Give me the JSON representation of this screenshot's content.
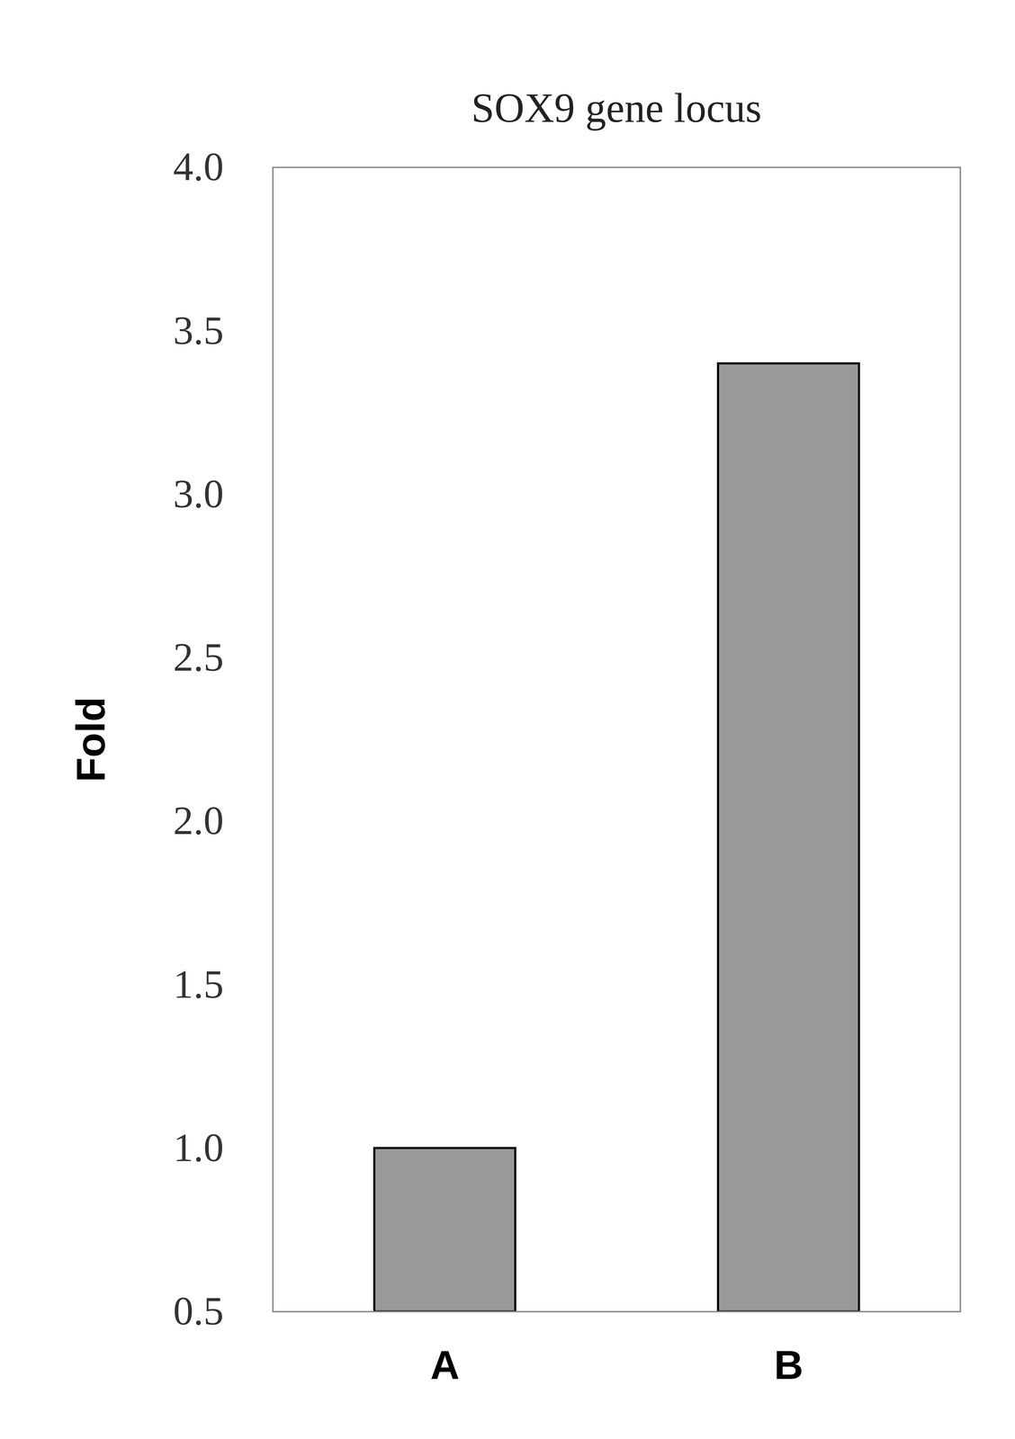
{
  "chart_data": {
    "type": "bar",
    "title": "SOX9 gene locus",
    "y_label": "Fold",
    "categories": [
      "A",
      "B"
    ],
    "values": [
      1.0,
      3.4
    ],
    "color": "#999999",
    "ylim": [
      0.5,
      4.0
    ],
    "yticks": [
      0.5,
      {
        "value": 1.0,
        "label": "1.0"
      },
      1.5,
      {
        "value": 2.0,
        "label": "2.0"
      },
      2.5,
      {
        "value": 3.0,
        "label": "3.0"
      },
      3.5,
      {
        "value": 4.0,
        "label": "4.0"
      }
    ],
    "grid": false
  }
}
